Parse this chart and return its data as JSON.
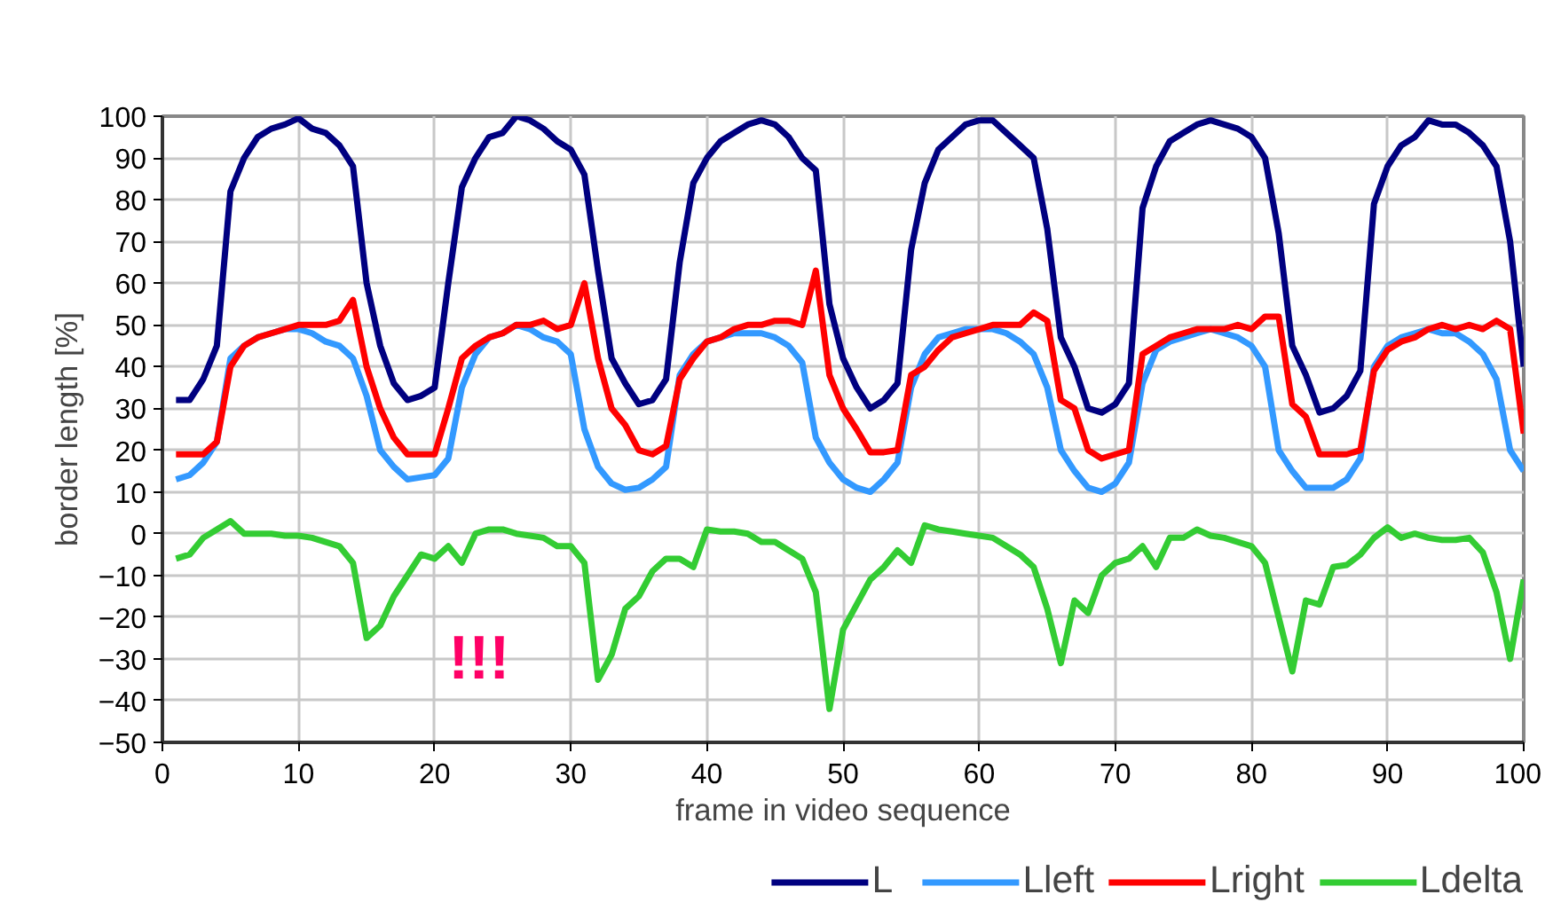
{
  "chart_data": {
    "type": "line",
    "xlabel": "frame in video sequence",
    "ylabel": "border length [%]",
    "x": [
      1,
      2,
      3,
      4,
      5,
      6,
      7,
      8,
      9,
      10,
      11,
      12,
      13,
      14,
      15,
      16,
      17,
      18,
      19,
      20,
      21,
      22,
      23,
      24,
      25,
      26,
      27,
      28,
      29,
      30,
      31,
      32,
      33,
      34,
      35,
      36,
      37,
      38,
      39,
      40,
      41,
      42,
      43,
      44,
      45,
      46,
      47,
      48,
      49,
      50,
      51,
      52,
      53,
      54,
      55,
      56,
      57,
      58,
      59,
      60,
      61,
      62,
      63,
      64,
      65,
      66,
      67,
      68,
      69,
      70,
      71,
      72,
      73,
      74,
      75,
      76,
      77,
      78,
      79,
      80,
      81,
      82,
      83,
      84,
      85,
      86,
      87,
      88,
      89,
      90,
      91,
      92,
      93,
      94,
      95,
      96,
      97,
      98,
      99,
      100
    ],
    "series": [
      {
        "name": "L",
        "color": "#000080",
        "values": [
          32,
          32,
          37,
          45,
          82,
          90,
          95,
          97,
          98,
          99.5,
          97,
          96,
          93,
          88,
          60,
          45,
          36,
          32,
          33,
          35,
          60,
          83,
          90,
          95,
          96,
          100,
          99,
          97,
          94,
          92,
          86,
          63,
          42,
          36,
          31,
          32,
          37,
          65,
          84,
          90,
          94,
          96,
          98,
          99,
          98,
          95,
          90,
          87,
          55,
          42,
          35,
          30,
          32,
          36,
          68,
          84,
          92,
          95,
          98,
          99,
          99,
          96,
          93,
          90,
          73,
          47,
          40,
          30,
          29,
          31,
          36,
          78,
          88,
          94,
          96,
          98,
          99,
          98,
          97,
          95,
          90,
          72,
          45,
          38,
          29,
          30,
          33,
          39,
          79,
          88,
          93,
          95,
          99,
          98,
          98,
          96,
          93,
          88,
          70,
          40
        ]
      },
      {
        "name": "Lleft",
        "color": "#3399ff",
        "values": [
          13,
          14,
          17,
          22,
          42,
          45,
          47,
          48,
          49,
          49,
          48,
          46,
          45,
          42,
          33,
          20,
          16,
          13,
          13.5,
          14,
          18,
          35,
          43,
          47,
          48,
          50,
          49,
          47,
          46,
          43,
          25,
          16,
          12,
          10.5,
          11,
          13,
          16,
          38,
          43,
          46,
          47,
          48,
          48,
          48,
          47,
          45,
          41,
          23,
          17,
          13,
          11,
          10,
          13,
          17,
          35,
          43,
          47,
          48,
          49,
          49,
          49,
          48,
          46,
          43,
          35,
          20,
          15,
          11,
          10,
          12,
          17,
          36,
          44,
          46,
          47,
          48,
          49,
          48,
          47,
          45,
          40,
          20,
          15,
          11,
          11,
          11,
          13,
          18,
          40,
          45,
          47,
          48,
          49,
          48,
          48,
          46,
          43,
          37,
          20,
          15
        ]
      },
      {
        "name": "Lright",
        "color": "#ff0000",
        "values": [
          19,
          19,
          19,
          22,
          40,
          45,
          47,
          48,
          49,
          50,
          50,
          50,
          51,
          56,
          40,
          30,
          23,
          19,
          19,
          19,
          30,
          42,
          45,
          47,
          48,
          50,
          50,
          51,
          49,
          50,
          60,
          42,
          30,
          26,
          20,
          19,
          21,
          37,
          42,
          46,
          47,
          49,
          50,
          50,
          51,
          51,
          50,
          63,
          38,
          30,
          25,
          19.5,
          19.5,
          20,
          38,
          40,
          44,
          47,
          48,
          49,
          50,
          50,
          50,
          53,
          51,
          32,
          30,
          20,
          18,
          19,
          20,
          43,
          45,
          47,
          48,
          49,
          49,
          49,
          50,
          49,
          52,
          52,
          31,
          28,
          19,
          19,
          19,
          20,
          39,
          44,
          46,
          47,
          49,
          50,
          49,
          50,
          49,
          51,
          49,
          24
        ]
      },
      {
        "name": "Ldelta",
        "color": "#33cc33",
        "values": [
          -6,
          -5,
          -1,
          1,
          3,
          0,
          0,
          0,
          -0.5,
          -0.5,
          -1,
          -2,
          -3,
          -7,
          -25,
          -22,
          -15,
          -10,
          -5,
          -6,
          -3,
          -7,
          0,
          1,
          1,
          0,
          -0.5,
          -1,
          -3,
          -3,
          -7,
          -35,
          -29,
          -18,
          -15,
          -9,
          -6,
          -6,
          -8,
          1,
          0.5,
          0.5,
          0,
          -2,
          -2,
          -4,
          -6,
          -14,
          -42,
          -23,
          -17,
          -11,
          -8,
          -4,
          -7,
          2,
          1,
          0.5,
          0,
          -0.5,
          -1,
          -3,
          -5,
          -8,
          -18,
          -31,
          -16,
          -19,
          -10,
          -7,
          -6,
          -3,
          -8,
          -1,
          -1,
          1,
          -0.5,
          -1,
          -2,
          -3,
          -7,
          -20,
          -33,
          -16,
          -17,
          -8,
          -7.5,
          -5,
          -1,
          1.5,
          -1,
          0,
          -1,
          -1.5,
          -1.5,
          -1,
          -4.5,
          -14,
          -30,
          -11
        ]
      }
    ],
    "xlim": [
      0,
      100
    ],
    "xticks": [
      0,
      10,
      20,
      30,
      40,
      50,
      60,
      70,
      80,
      90,
      100
    ],
    "ylim": [
      -50,
      100
    ],
    "yticks": [
      -50,
      -40,
      -30,
      -20,
      -10,
      0,
      10,
      20,
      30,
      40,
      50,
      60,
      70,
      80,
      90,
      100
    ],
    "grid": true,
    "legend": "bottom",
    "marker": "none",
    "line_style": "solid",
    "annotations": [
      "!!!"
    ]
  }
}
